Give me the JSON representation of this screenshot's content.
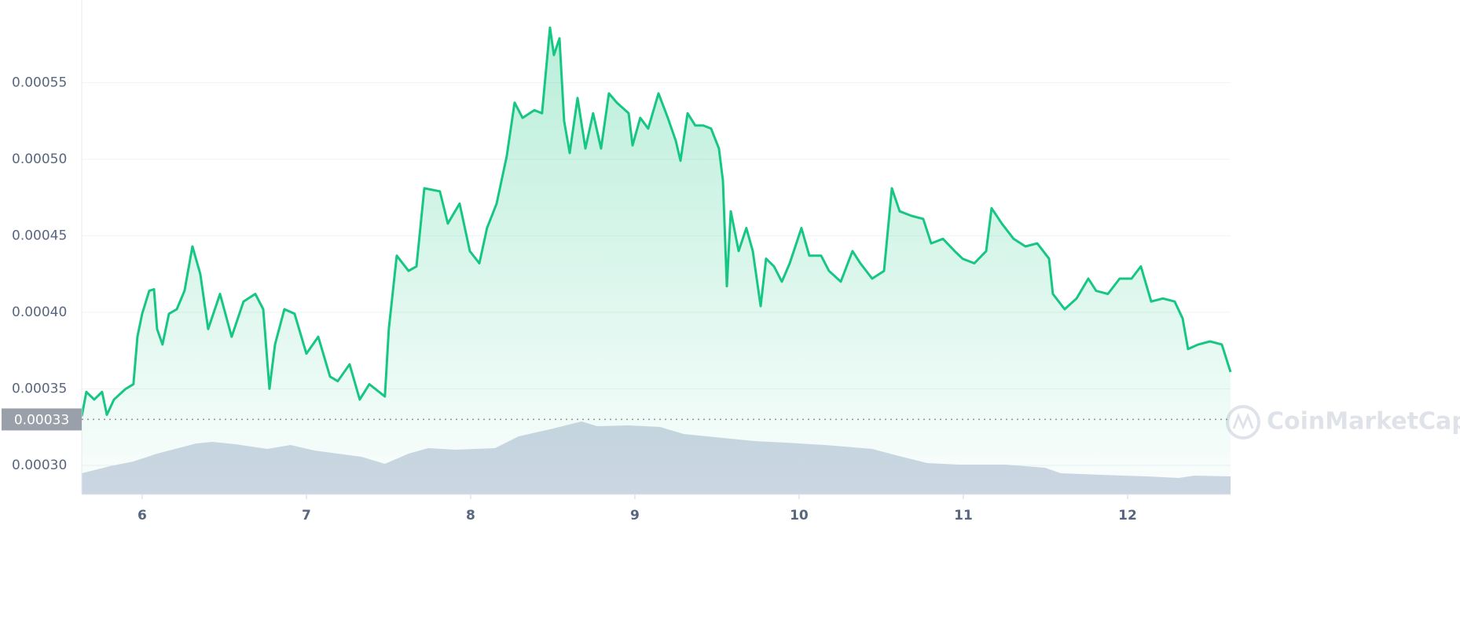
{
  "chart_data": {
    "type": "line",
    "xlim": [
      5.632,
      12.627
    ],
    "xticks": [
      6,
      7,
      8,
      9,
      10,
      11,
      12
    ],
    "ylim": [
      0.000281,
      0.000604
    ],
    "yticks": [
      {
        "value": 0.0003,
        "label": "0.00030"
      },
      0.00035,
      {
        "value": 0.0004,
        "label": "0.00040"
      },
      0.00045,
      {
        "value": 0.0005,
        "label": "0.00050"
      },
      0.00055
    ],
    "y2lim": [
      0,
      630
    ],
    "grid": true,
    "current_price": 0.00033,
    "watermark": "CoinMarketCap",
    "series": [
      {
        "name": "price",
        "color": "#16c784",
        "x": [
          5.632,
          5.66,
          5.708,
          5.756,
          5.785,
          5.828,
          5.9,
          5.947,
          5.971,
          6.0,
          6.043,
          6.072,
          6.091,
          6.124,
          6.163,
          6.211,
          6.258,
          6.306,
          6.354,
          6.402,
          6.474,
          6.545,
          6.617,
          6.689,
          6.737,
          6.775,
          6.809,
          6.866,
          6.928,
          7.0,
          7.072,
          7.144,
          7.191,
          7.263,
          7.325,
          7.383,
          7.478,
          7.502,
          7.55,
          7.622,
          7.67,
          7.718,
          7.813,
          7.861,
          7.933,
          7.995,
          8.053,
          8.1,
          8.158,
          8.22,
          8.268,
          8.316,
          8.388,
          8.435,
          8.483,
          8.507,
          8.541,
          8.569,
          8.603,
          8.651,
          8.699,
          8.746,
          8.794,
          8.842,
          8.89,
          8.962,
          8.986,
          9.033,
          9.081,
          9.144,
          9.201,
          9.249,
          9.278,
          9.321,
          9.368,
          9.416,
          9.464,
          9.512,
          9.536,
          9.56,
          9.584,
          9.632,
          9.679,
          9.718,
          9.766,
          9.799,
          9.847,
          9.895,
          9.943,
          10.014,
          10.062,
          10.134,
          10.182,
          10.254,
          10.325,
          10.373,
          10.445,
          10.517,
          10.565,
          10.612,
          10.684,
          10.756,
          10.804,
          10.876,
          10.947,
          10.995,
          11.067,
          11.139,
          11.172,
          11.234,
          11.306,
          11.378,
          11.45,
          11.522,
          11.545,
          11.617,
          11.689,
          11.761,
          11.809,
          11.88,
          11.952,
          12.024,
          12.081,
          12.144,
          12.215,
          12.287,
          12.335,
          12.368,
          12.431,
          12.502,
          12.574,
          12.627
        ],
        "values": [
          0.000332,
          0.000348,
          0.000343,
          0.000348,
          0.000333,
          0.000343,
          0.00035,
          0.000353,
          0.000384,
          0.000399,
          0.000414,
          0.000415,
          0.000389,
          0.000379,
          0.000399,
          0.000402,
          0.000414,
          0.000443,
          0.000425,
          0.000389,
          0.000412,
          0.000384,
          0.000407,
          0.000412,
          0.000402,
          0.00035,
          0.000379,
          0.000402,
          0.000399,
          0.000373,
          0.000384,
          0.000358,
          0.000355,
          0.000366,
          0.000343,
          0.000353,
          0.000345,
          0.000389,
          0.000437,
          0.000427,
          0.00043,
          0.000481,
          0.000479,
          0.000458,
          0.000471,
          0.00044,
          0.000432,
          0.000455,
          0.000471,
          0.000502,
          0.000537,
          0.000527,
          0.000532,
          0.00053,
          0.000586,
          0.000568,
          0.000579,
          0.000525,
          0.000504,
          0.00054,
          0.000507,
          0.00053,
          0.000507,
          0.000543,
          0.000537,
          0.00053,
          0.000509,
          0.000527,
          0.00052,
          0.000543,
          0.000527,
          0.000512,
          0.000499,
          0.00053,
          0.000522,
          0.000522,
          0.00052,
          0.000507,
          0.000486,
          0.000417,
          0.000466,
          0.00044,
          0.000455,
          0.00044,
          0.000404,
          0.000435,
          0.00043,
          0.00042,
          0.000432,
          0.000455,
          0.000437,
          0.000437,
          0.000427,
          0.00042,
          0.00044,
          0.000432,
          0.000422,
          0.000427,
          0.000481,
          0.000466,
          0.000463,
          0.000461,
          0.000445,
          0.000448,
          0.00044,
          0.000435,
          0.000432,
          0.00044,
          0.000468,
          0.000458,
          0.000448,
          0.000443,
          0.000445,
          0.000435,
          0.000412,
          0.000402,
          0.000409,
          0.000422,
          0.000414,
          0.000412,
          0.000422,
          0.000422,
          0.00043,
          0.000407,
          0.000409,
          0.000407,
          0.000396,
          0.000376,
          0.000379,
          0.000381,
          0.000379,
          0.000361
        ]
      },
      {
        "name": "volume",
        "color": "#cfd6e4",
        "axis": "y2",
        "x": [
          5.632,
          5.804,
          5.947,
          6.091,
          6.33,
          6.426,
          6.569,
          6.761,
          6.904,
          7.048,
          7.191,
          7.335,
          7.478,
          7.622,
          7.742,
          7.909,
          8.148,
          8.292,
          8.483,
          8.675,
          8.77,
          8.962,
          9.153,
          9.297,
          9.536,
          9.727,
          9.919,
          10.158,
          10.445,
          10.589,
          10.78,
          10.971,
          11.258,
          11.498,
          11.593,
          11.833,
          12.12,
          12.311,
          12.407,
          12.627
        ],
        "values": [
          27,
          36,
          42,
          52,
          65,
          67,
          64,
          58,
          63,
          56,
          52,
          48,
          39,
          52,
          59,
          57,
          59,
          74,
          83,
          93,
          87,
          88,
          86,
          77,
          72,
          68,
          66,
          63,
          58,
          50,
          40,
          38,
          38,
          34,
          27,
          25,
          23,
          21,
          24,
          23
        ]
      }
    ]
  }
}
